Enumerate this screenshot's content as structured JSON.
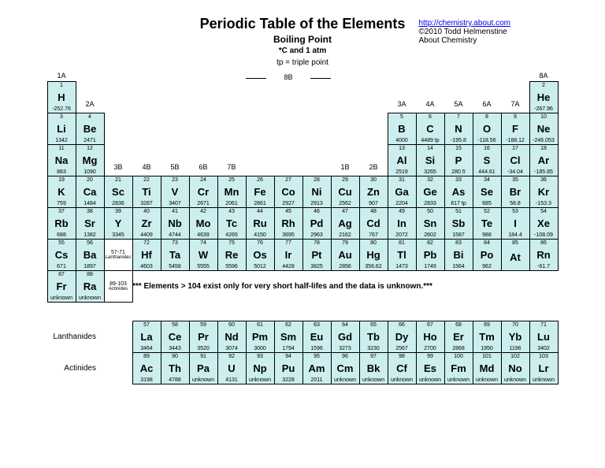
{
  "title": "Periodic Table of the Elements",
  "subtitle": "Boiling Point",
  "conditions": "*C and 1 atm",
  "tp_note": "tp = triple point",
  "link_text": "http://chemistry.about.com",
  "link_href": "http://chemistry.about.com",
  "copyright": "©2010 Todd Helmenstine",
  "about": "About Chemistry",
  "note104": "*** Elements > 104 exist only for very short half-lifes and the data is unknown.***",
  "lanth_label": "Lanthanides",
  "act_label": "Actinides",
  "ghost_lanth": "Lanthanides",
  "ghost_act": "Actinides",
  "ghost_lanth_range": "57-71",
  "ghost_act_range": "89-103",
  "cell_bg": "#cceeee",
  "col_labels": {
    "c1": "1A",
    "c2": "2A",
    "c3": "3B",
    "c4": "4B",
    "c5": "5B",
    "c6": "6B",
    "c7": "7B",
    "c8": "8B",
    "c11": "1B",
    "c12": "2B",
    "c13": "3A",
    "c14": "4A",
    "c15": "5A",
    "c16": "6A",
    "c17": "7A",
    "c18": "8A"
  },
  "elements": [
    {
      "n": 1,
      "s": "H",
      "v": "-252.76",
      "r": 2,
      "c": 1
    },
    {
      "n": 2,
      "s": "He",
      "v": "-267.96",
      "r": 2,
      "c": 18
    },
    {
      "n": 3,
      "s": "Li",
      "v": "1342",
      "r": 3,
      "c": 1
    },
    {
      "n": 4,
      "s": "Be",
      "v": "2471",
      "r": 3,
      "c": 2
    },
    {
      "n": 5,
      "s": "B",
      "v": "4000",
      "r": 3,
      "c": 13
    },
    {
      "n": 6,
      "s": "C",
      "v": "4489 tp",
      "r": 3,
      "c": 14
    },
    {
      "n": 7,
      "s": "N",
      "v": "-195.8",
      "r": 3,
      "c": 15
    },
    {
      "n": 8,
      "s": "O",
      "v": "-118.56",
      "r": 3,
      "c": 16
    },
    {
      "n": 9,
      "s": "F",
      "v": "-188.12",
      "r": 3,
      "c": 17
    },
    {
      "n": 10,
      "s": "Ne",
      "v": "-246.053",
      "r": 3,
      "c": 18
    },
    {
      "n": 11,
      "s": "Na",
      "v": "883",
      "r": 4,
      "c": 1
    },
    {
      "n": 12,
      "s": "Mg",
      "v": "1090",
      "r": 4,
      "c": 2
    },
    {
      "n": 13,
      "s": "Al",
      "v": "2519",
      "r": 4,
      "c": 13
    },
    {
      "n": 14,
      "s": "Si",
      "v": "3265",
      "r": 4,
      "c": 14
    },
    {
      "n": 15,
      "s": "P",
      "v": "280.5",
      "r": 4,
      "c": 15
    },
    {
      "n": 16,
      "s": "S",
      "v": "444.61",
      "r": 4,
      "c": 16
    },
    {
      "n": 17,
      "s": "Cl",
      "v": "-34.04",
      "r": 4,
      "c": 17
    },
    {
      "n": 18,
      "s": "Ar",
      "v": "-185.85",
      "r": 4,
      "c": 18
    },
    {
      "n": 19,
      "s": "K",
      "v": "759",
      "r": 5,
      "c": 1
    },
    {
      "n": 20,
      "s": "Ca",
      "v": "1484",
      "r": 5,
      "c": 2
    },
    {
      "n": 21,
      "s": "Sc",
      "v": "2836",
      "r": 5,
      "c": 3
    },
    {
      "n": 22,
      "s": "Ti",
      "v": "3287",
      "r": 5,
      "c": 4
    },
    {
      "n": 23,
      "s": "V",
      "v": "3407",
      "r": 5,
      "c": 5
    },
    {
      "n": 24,
      "s": "Cr",
      "v": "2671",
      "r": 5,
      "c": 6
    },
    {
      "n": 25,
      "s": "Mn",
      "v": "2061",
      "r": 5,
      "c": 7
    },
    {
      "n": 26,
      "s": "Fe",
      "v": "2861",
      "r": 5,
      "c": 8
    },
    {
      "n": 27,
      "s": "Co",
      "v": "2927",
      "r": 5,
      "c": 9
    },
    {
      "n": 28,
      "s": "Ni",
      "v": "2913",
      "r": 5,
      "c": 10
    },
    {
      "n": 29,
      "s": "Cu",
      "v": "2562",
      "r": 5,
      "c": 11
    },
    {
      "n": 30,
      "s": "Zn",
      "v": "907",
      "r": 5,
      "c": 12
    },
    {
      "n": 31,
      "s": "Ga",
      "v": "2204",
      "r": 5,
      "c": 13
    },
    {
      "n": 32,
      "s": "Ge",
      "v": "2833",
      "r": 5,
      "c": 14
    },
    {
      "n": 33,
      "s": "As",
      "v": "817 tp",
      "r": 5,
      "c": 15
    },
    {
      "n": 34,
      "s": "Se",
      "v": "685",
      "r": 5,
      "c": 16
    },
    {
      "n": 35,
      "s": "Br",
      "v": "58.8",
      "r": 5,
      "c": 17
    },
    {
      "n": 36,
      "s": "Kr",
      "v": "-153.3",
      "r": 5,
      "c": 18
    },
    {
      "n": 37,
      "s": "Rb",
      "v": "688",
      "r": 6,
      "c": 1
    },
    {
      "n": 38,
      "s": "Sr",
      "v": "1382",
      "r": 6,
      "c": 2
    },
    {
      "n": 39,
      "s": "Y",
      "v": "3345",
      "r": 6,
      "c": 3
    },
    {
      "n": 40,
      "s": "Zr",
      "v": "4409",
      "r": 6,
      "c": 4
    },
    {
      "n": 41,
      "s": "Nb",
      "v": "4744",
      "r": 6,
      "c": 5
    },
    {
      "n": 42,
      "s": "Mo",
      "v": "4639",
      "r": 6,
      "c": 6
    },
    {
      "n": 43,
      "s": "Tc",
      "v": "4265",
      "r": 6,
      "c": 7
    },
    {
      "n": 44,
      "s": "Ru",
      "v": "4150",
      "r": 6,
      "c": 8
    },
    {
      "n": 45,
      "s": "Rh",
      "v": "3695",
      "r": 6,
      "c": 9
    },
    {
      "n": 46,
      "s": "Pd",
      "v": "2963",
      "r": 6,
      "c": 10
    },
    {
      "n": 47,
      "s": "Ag",
      "v": "2162",
      "r": 6,
      "c": 11
    },
    {
      "n": 48,
      "s": "Cd",
      "v": "767",
      "r": 6,
      "c": 12
    },
    {
      "n": 49,
      "s": "In",
      "v": "2072",
      "r": 6,
      "c": 13
    },
    {
      "n": 50,
      "s": "Sn",
      "v": "2602",
      "r": 6,
      "c": 14
    },
    {
      "n": 51,
      "s": "Sb",
      "v": "1587",
      "r": 6,
      "c": 15
    },
    {
      "n": 52,
      "s": "Te",
      "v": "988",
      "r": 6,
      "c": 16
    },
    {
      "n": 53,
      "s": "I",
      "v": "184.4",
      "r": 6,
      "c": 17
    },
    {
      "n": 54,
      "s": "Xe",
      "v": "-108.09",
      "r": 6,
      "c": 18
    },
    {
      "n": 55,
      "s": "Cs",
      "v": "671",
      "r": 7,
      "c": 1
    },
    {
      "n": 56,
      "s": "Ba",
      "v": "1897",
      "r": 7,
      "c": 2
    },
    {
      "n": 72,
      "s": "Hf",
      "v": "4603",
      "r": 7,
      "c": 4
    },
    {
      "n": 73,
      "s": "Ta",
      "v": "5458",
      "r": 7,
      "c": 5
    },
    {
      "n": 74,
      "s": "W",
      "v": "5555",
      "r": 7,
      "c": 6
    },
    {
      "n": 75,
      "s": "Re",
      "v": "5596",
      "r": 7,
      "c": 7
    },
    {
      "n": 76,
      "s": "Os",
      "v": "5012",
      "r": 7,
      "c": 8
    },
    {
      "n": 77,
      "s": "Ir",
      "v": "4428",
      "r": 7,
      "c": 9
    },
    {
      "n": 78,
      "s": "Pt",
      "v": "3825",
      "r": 7,
      "c": 10
    },
    {
      "n": 79,
      "s": "Au",
      "v": "2856",
      "r": 7,
      "c": 11
    },
    {
      "n": 80,
      "s": "Hg",
      "v": "356.62",
      "r": 7,
      "c": 12
    },
    {
      "n": 81,
      "s": "Tl",
      "v": "1473",
      "r": 7,
      "c": 13
    },
    {
      "n": 82,
      "s": "Pb",
      "v": "1749",
      "r": 7,
      "c": 14
    },
    {
      "n": 83,
      "s": "Bi",
      "v": "1564",
      "r": 7,
      "c": 15
    },
    {
      "n": 84,
      "s": "Po",
      "v": "962",
      "r": 7,
      "c": 16
    },
    {
      "n": 85,
      "s": "At",
      "v": "",
      "r": 7,
      "c": 17
    },
    {
      "n": 86,
      "s": "Rn",
      "v": "-61.7",
      "r": 7,
      "c": 18
    },
    {
      "n": 87,
      "s": "Fr",
      "v": "unknown",
      "r": 8,
      "c": 1
    },
    {
      "n": 88,
      "s": "Ra",
      "v": "unknown",
      "r": 8,
      "c": 2
    },
    {
      "n": 57,
      "s": "La",
      "v": "3464",
      "r": 10,
      "c": 4
    },
    {
      "n": 58,
      "s": "Ce",
      "v": "3443",
      "r": 10,
      "c": 5
    },
    {
      "n": 59,
      "s": "Pr",
      "v": "3520",
      "r": 10,
      "c": 6
    },
    {
      "n": 60,
      "s": "Nd",
      "v": "3074",
      "r": 10,
      "c": 7
    },
    {
      "n": 61,
      "s": "Pm",
      "v": "3000",
      "r": 10,
      "c": 8
    },
    {
      "n": 62,
      "s": "Sm",
      "v": "1794",
      "r": 10,
      "c": 9
    },
    {
      "n": 63,
      "s": "Eu",
      "v": "1596",
      "r": 10,
      "c": 10
    },
    {
      "n": 64,
      "s": "Gd",
      "v": "3273",
      "r": 10,
      "c": 11
    },
    {
      "n": 65,
      "s": "Tb",
      "v": "3230",
      "r": 10,
      "c": 12
    },
    {
      "n": 66,
      "s": "Dy",
      "v": "2567",
      "r": 10,
      "c": 13
    },
    {
      "n": 67,
      "s": "Ho",
      "v": "2700",
      "r": 10,
      "c": 14
    },
    {
      "n": 68,
      "s": "Er",
      "v": "2868",
      "r": 10,
      "c": 15
    },
    {
      "n": 69,
      "s": "Tm",
      "v": "1950",
      "r": 10,
      "c": 16
    },
    {
      "n": 70,
      "s": "Yb",
      "v": "1196",
      "r": 10,
      "c": 17
    },
    {
      "n": 71,
      "s": "Lu",
      "v": "3402",
      "r": 10,
      "c": 18
    },
    {
      "n": 89,
      "s": "Ac",
      "v": "3198",
      "r": 11,
      "c": 4
    },
    {
      "n": 90,
      "s": "Th",
      "v": "4788",
      "r": 11,
      "c": 5
    },
    {
      "n": 91,
      "s": "Pa",
      "v": "unknown",
      "r": 11,
      "c": 6
    },
    {
      "n": 92,
      "s": "U",
      "v": "4131",
      "r": 11,
      "c": 7
    },
    {
      "n": 93,
      "s": "Np",
      "v": "unknown",
      "r": 11,
      "c": 8
    },
    {
      "n": 94,
      "s": "Pu",
      "v": "3228",
      "r": 11,
      "c": 9
    },
    {
      "n": 95,
      "s": "Am",
      "v": "2011",
      "r": 11,
      "c": 10
    },
    {
      "n": 96,
      "s": "Cm",
      "v": "unknown",
      "r": 11,
      "c": 11
    },
    {
      "n": 97,
      "s": "Bk",
      "v": "unknown",
      "r": 11,
      "c": 12
    },
    {
      "n": 98,
      "s": "Cf",
      "v": "unknown",
      "r": 11,
      "c": 13
    },
    {
      "n": 99,
      "s": "Es",
      "v": "unknown",
      "r": 11,
      "c": 14
    },
    {
      "n": 100,
      "s": "Fm",
      "v": "unknown",
      "r": 11,
      "c": 15
    },
    {
      "n": 101,
      "s": "Md",
      "v": "unknown",
      "r": 11,
      "c": 16
    },
    {
      "n": 102,
      "s": "No",
      "v": "unknown",
      "r": 11,
      "c": 17
    },
    {
      "n": 103,
      "s": "Lr",
      "v": "unknown",
      "r": 11,
      "c": 18
    }
  ]
}
